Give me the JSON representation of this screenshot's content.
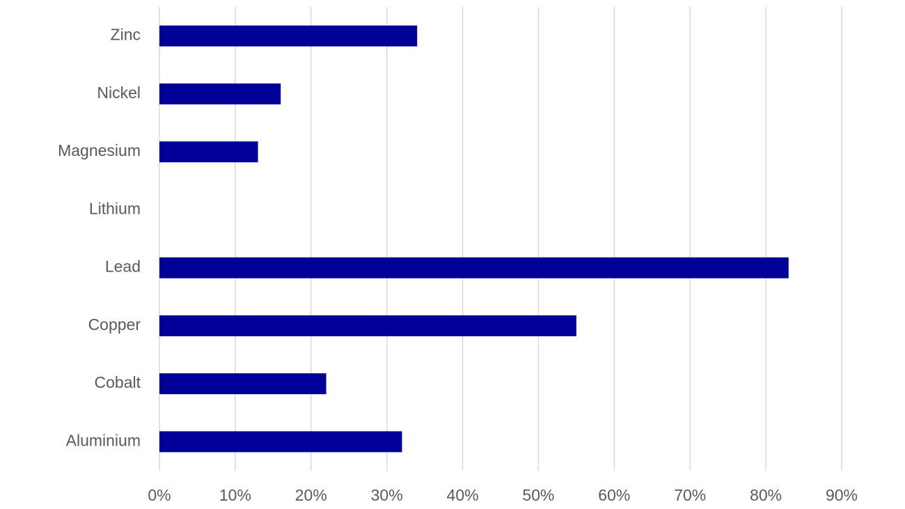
{
  "chart_data": {
    "type": "bar",
    "orientation": "horizontal",
    "categories": [
      "Zinc",
      "Nickel",
      "Magnesium",
      "Lithium",
      "Lead",
      "Copper",
      "Cobalt",
      "Aluminium"
    ],
    "values": [
      34,
      16,
      13,
      0,
      83,
      55,
      22,
      32
    ],
    "color": "#000099",
    "xlim": [
      0,
      90
    ],
    "xticks": [
      {
        "value": 0,
        "label": "0%"
      },
      {
        "value": 10,
        "label": "10%"
      },
      {
        "value": 20,
        "label": "20%"
      },
      {
        "value": 30,
        "label": "30%"
      },
      {
        "value": 40,
        "label": "40%"
      },
      {
        "value": 50,
        "label": "50%"
      },
      {
        "value": 60,
        "label": "60%"
      },
      {
        "value": 70,
        "label": "70%"
      },
      {
        "value": 80,
        "label": "80%"
      },
      {
        "value": 90,
        "label": "90%"
      }
    ],
    "grid": true
  }
}
